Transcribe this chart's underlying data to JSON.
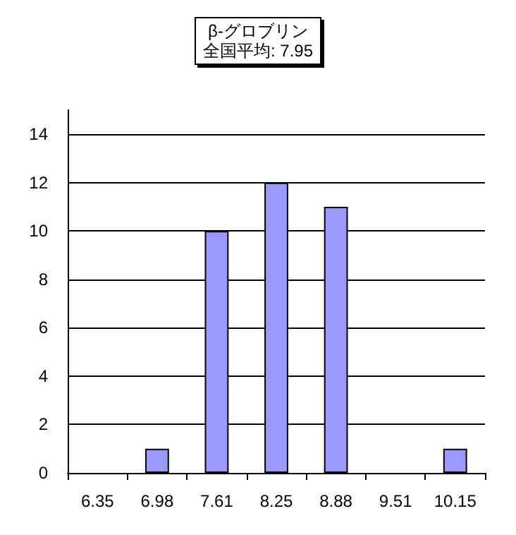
{
  "chart_data": {
    "type": "bar",
    "title": "β-グロブリン",
    "subtitle": "全国平均: 7.95",
    "categories": [
      "6.35",
      "6.98",
      "7.61",
      "8.25",
      "8.88",
      "9.51",
      "10.15"
    ],
    "values": [
      0,
      1,
      10,
      12,
      11,
      0,
      1
    ],
    "color": "#9999ff",
    "ylim": [
      0,
      15
    ],
    "yticks": [
      0,
      2,
      4,
      6,
      8,
      10,
      12,
      14
    ],
    "grid": "y"
  }
}
